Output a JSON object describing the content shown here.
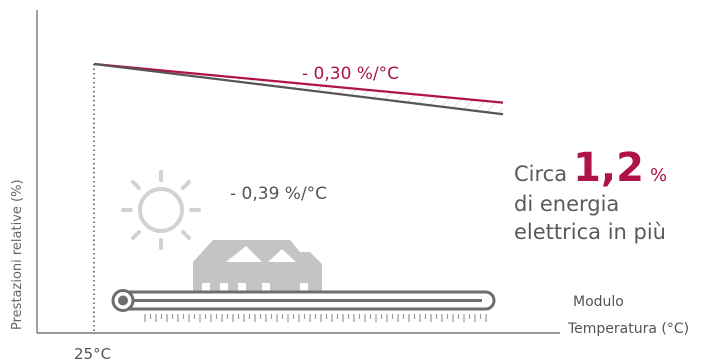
{
  "chart_data": {
    "type": "line",
    "title": "",
    "xlabel_line1": "Modulo",
    "xlabel_line2": "Temperatura (°C)",
    "ylabel": "Prestazioni relative (%)",
    "x_tick_label": "25°C",
    "series": [
      {
        "label": "- 0,30 %/°C",
        "slope_pct_per_c": -0.3,
        "color": "#b0124a"
      },
      {
        "label": "- 0,39 %/°C",
        "slope_pct_per_c": -0.39,
        "color": "#555555"
      }
    ],
    "grid": false,
    "shaded_gap": true
  },
  "callout": {
    "prefix": "Circa",
    "value": "1,2",
    "unit": "%",
    "line2": "di energia",
    "line3": "elettrica in più"
  },
  "icons": [
    "sun-icon",
    "house-icon",
    "thermometer-icon"
  ],
  "colors": {
    "accent": "#b0124a",
    "dark_line": "#555555",
    "axis": "#777777",
    "icon_gray": "#bdbdbd",
    "hatch": "#c8c8c8"
  }
}
